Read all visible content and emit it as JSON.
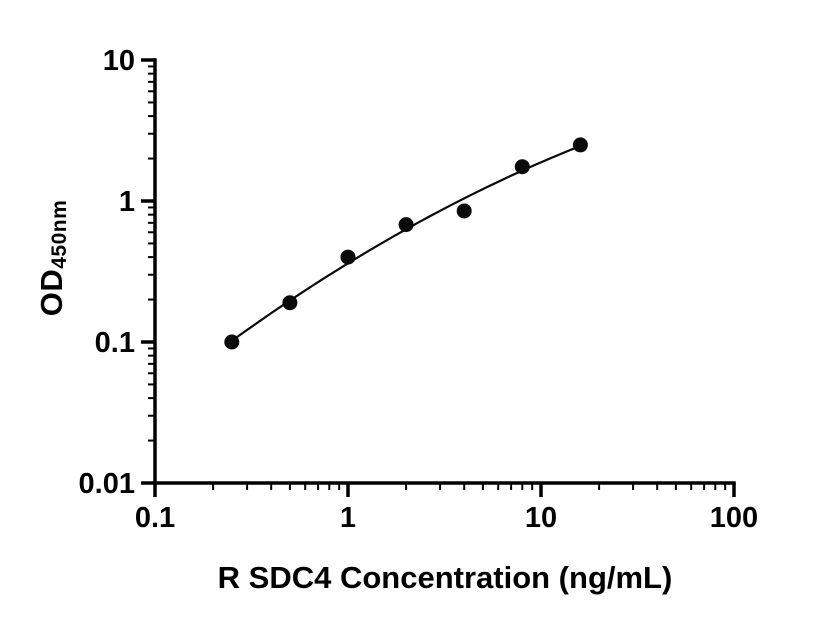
{
  "chart_data": {
    "type": "scatter",
    "title": "",
    "xlabel": "R SDC4 Concentration (ng/mL)",
    "ylabel_main": "OD",
    "ylabel_sub": "450nm",
    "xscale": "log",
    "yscale": "log",
    "xlim": [
      0.1,
      100
    ],
    "ylim": [
      0.01,
      10
    ],
    "x_tick_values": [
      0.1,
      1,
      10,
      100
    ],
    "x_tick_labels": [
      "0.1",
      "1",
      "10",
      "100"
    ],
    "y_tick_values": [
      10,
      1,
      0.1,
      0.01
    ],
    "y_tick_labels": [
      "10",
      "1",
      "0.1",
      "0.01"
    ],
    "x": [
      0.25,
      0.5,
      1,
      2,
      4,
      8,
      16
    ],
    "y": [
      0.1,
      0.19,
      0.4,
      0.68,
      0.85,
      1.75,
      2.5
    ],
    "fit_curve": {
      "type": "quadratic_loglog",
      "a": -0.442,
      "b": 0.8392,
      "c": -0.123,
      "x_range": [
        0.25,
        16
      ]
    },
    "point_color": "#0a0a0a",
    "line_color": "#0a0a0a",
    "axis_color": "#000000",
    "grid": false,
    "legend": false
  }
}
